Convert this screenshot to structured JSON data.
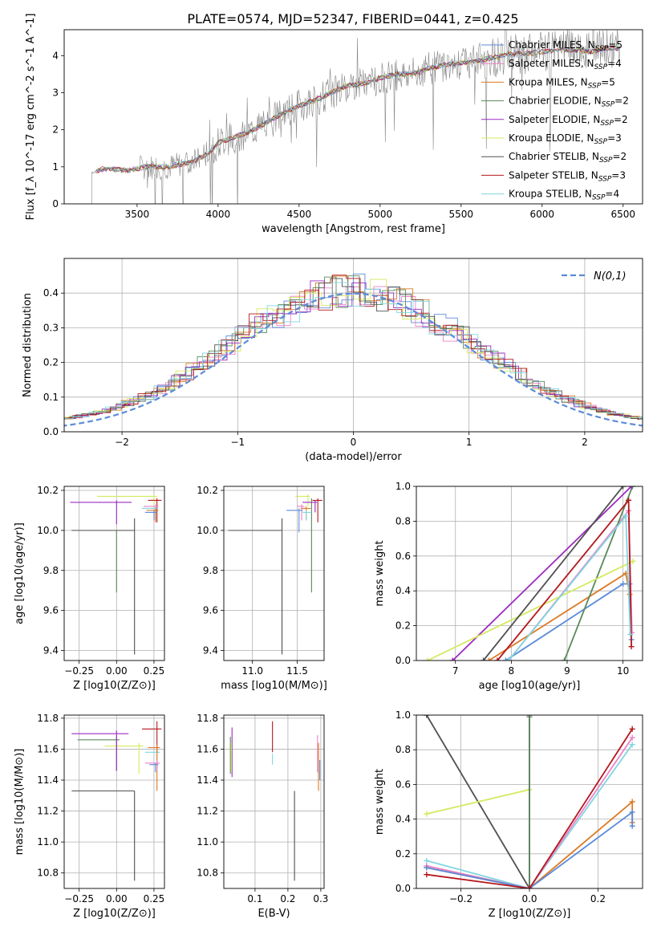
{
  "title": "PLATE=0574, MJD=52347, FIBERID=0441, z=0.425",
  "models": [
    {
      "name": "Chabrier MILES",
      "nssp": "5",
      "color": "#5b8bd9"
    },
    {
      "name": "Salpeter MILES",
      "nssp": "4",
      "color": "#ee82c8"
    },
    {
      "name": "Kroupa MILES",
      "nssp": "5",
      "color": "#dd7a26"
    },
    {
      "name": "Chabrier ELODIE",
      "nssp": "2",
      "color": "#5a8a5a"
    },
    {
      "name": "Salpeter ELODIE",
      "nssp": "2",
      "color": "#9b2bc0"
    },
    {
      "name": "Kroupa ELODIE",
      "nssp": "3",
      "color": "#d4ea5f"
    },
    {
      "name": "Chabrier STELIB",
      "nssp": "2",
      "color": "#505050"
    },
    {
      "name": "Salpeter STELIB",
      "nssp": "3",
      "color": "#b5171c"
    },
    {
      "name": "Kroupa STELIB",
      "nssp": "4",
      "color": "#7fd7e0"
    }
  ],
  "chart_data": [
    {
      "id": "spectrum",
      "type": "line",
      "xlabel": "wavelength [Angstrom, rest frame]",
      "ylabel": "Flux [f_λ 10^-17 erg cm^-2 s^-1 A^-1]",
      "xlim": [
        3050,
        6620
      ],
      "ylim": [
        0,
        4.7
      ],
      "xticks": [
        3500,
        4000,
        4500,
        5000,
        5500,
        6000,
        6500
      ],
      "yticks": [
        0,
        1,
        2,
        3,
        4
      ],
      "data_color": "#888888",
      "continuum": [
        [
          3220,
          0.85
        ],
        [
          3300,
          0.95
        ],
        [
          3450,
          0.9
        ],
        [
          3550,
          1.0
        ],
        [
          3700,
          1.0
        ],
        [
          3850,
          1.15
        ],
        [
          3950,
          1.4
        ],
        [
          4000,
          1.65
        ],
        [
          4100,
          1.8
        ],
        [
          4200,
          1.95
        ],
        [
          4300,
          2.2
        ],
        [
          4400,
          2.45
        ],
        [
          4500,
          2.65
        ],
        [
          4600,
          2.8
        ],
        [
          4700,
          3.0
        ],
        [
          4800,
          3.2
        ],
        [
          4900,
          3.25
        ],
        [
          5000,
          3.4
        ],
        [
          5100,
          3.5
        ],
        [
          5200,
          3.5
        ],
        [
          5300,
          3.65
        ],
        [
          5400,
          3.75
        ],
        [
          5500,
          3.8
        ],
        [
          5600,
          3.85
        ],
        [
          5700,
          3.95
        ],
        [
          5800,
          4.05
        ],
        [
          5900,
          4.05
        ],
        [
          6000,
          4.1
        ],
        [
          6100,
          4.15
        ],
        [
          6200,
          4.15
        ],
        [
          6300,
          4.1
        ],
        [
          6400,
          4.2
        ],
        [
          6480,
          4.2
        ]
      ]
    },
    {
      "id": "residuals",
      "type": "step",
      "xlabel": "(data-model)/error",
      "ylabel": "Normed distribution",
      "xlim": [
        -2.5,
        2.5
      ],
      "ylim": [
        0,
        0.5
      ],
      "xticks": [
        -2,
        -1,
        0,
        1,
        2
      ],
      "yticks": [
        0.0,
        0.1,
        0.2,
        0.3,
        0.4
      ],
      "gaussian_label": "N(0,1)",
      "gaussian_color": "#5b8bd9"
    },
    {
      "id": "age-vs-Z",
      "type": "errorbar",
      "xlabel": "Z [log10(Z/Z⊙)]",
      "ylabel": "age [log10(age/yr)]",
      "xlim": [
        -0.35,
        0.32
      ],
      "ylim": [
        9.35,
        10.22
      ],
      "xticks": [
        -0.25,
        0.0,
        0.25
      ],
      "xticklabels": [
        "−0.25",
        "0.00",
        "0.25"
      ],
      "yticks": [
        9.4,
        9.6,
        9.8,
        10.0,
        10.2
      ],
      "points": [
        {
          "m": 6,
          "x": 0.12,
          "y": 10.0,
          "xl": 0.42,
          "xh": 0,
          "yl": 0.62,
          "yh": 0.06
        },
        {
          "m": 3,
          "x": 0.0,
          "y": 10.0,
          "xl": 0,
          "xh": 0,
          "yl": 0.31,
          "yh": 0
        },
        {
          "m": 5,
          "x": 0.25,
          "y": 10.17,
          "xl": 0.38,
          "xh": 0.02,
          "yl": 0.05,
          "yh": 0.01
        },
        {
          "m": 4,
          "x": 0.0,
          "y": 10.14,
          "xl": 0.31,
          "xh": 0.1,
          "yl": 0.11,
          "yh": 0.01
        },
        {
          "m": 7,
          "x": 0.27,
          "y": 10.15,
          "xl": 0.06,
          "xh": 0.03,
          "yl": 0.11,
          "yh": 0.01
        },
        {
          "m": 1,
          "x": 0.26,
          "y": 10.12,
          "xl": 0.08,
          "xh": 0.02,
          "yl": 0.07,
          "yh": 0.01
        },
        {
          "m": 8,
          "x": 0.26,
          "y": 10.11,
          "xl": 0.09,
          "xh": 0.01,
          "yl": 0.05,
          "yh": 0.01
        },
        {
          "m": 2,
          "x": 0.26,
          "y": 10.1,
          "xl": 0.06,
          "xh": 0.02,
          "yl": 0.06,
          "yh": 0.01
        },
        {
          "m": 0,
          "x": 0.25,
          "y": 10.09,
          "xl": 0.06,
          "xh": 0.02,
          "yl": 0.04,
          "yh": 0.01
        }
      ]
    },
    {
      "id": "age-vs-mass",
      "type": "errorbar",
      "xlabel": "mass [log10(M/M⊙)]",
      "ylabel": "",
      "xlim": [
        10.68,
        11.8
      ],
      "ylim": [
        9.35,
        10.22
      ],
      "xticks": [
        11.0,
        11.5
      ],
      "yticks": [
        9.4,
        9.6,
        9.8,
        10.0,
        10.2
      ],
      "points": [
        {
          "m": 6,
          "x": 11.33,
          "y": 10.0,
          "xl": 0.6,
          "xh": 0,
          "yl": 0.62,
          "yh": 0.06
        },
        {
          "m": 3,
          "x": 11.66,
          "y": 10.14,
          "xl": 0,
          "xh": 0,
          "yl": 0.45,
          "yh": 0.02
        },
        {
          "m": 5,
          "x": 11.62,
          "y": 10.17,
          "xl": 0.14,
          "xh": 0.02,
          "yl": 0.05,
          "yh": 0.01
        },
        {
          "m": 4,
          "x": 11.7,
          "y": 10.14,
          "xl": 0.14,
          "xh": 0.02,
          "yl": 0.05,
          "yh": 0.01
        },
        {
          "m": 7,
          "x": 11.73,
          "y": 10.15,
          "xl": 0.06,
          "xh": 0.05,
          "yl": 0.11,
          "yh": 0.01
        },
        {
          "m": 2,
          "x": 11.6,
          "y": 10.11,
          "xl": 0.06,
          "xh": 0.05,
          "yl": 0.06,
          "yh": 0.01
        },
        {
          "m": 8,
          "x": 11.6,
          "y": 10.09,
          "xl": 0.04,
          "xh": 0.05,
          "yl": 0.04,
          "yh": 0.01
        },
        {
          "m": 1,
          "x": 11.55,
          "y": 10.12,
          "xl": 0.05,
          "xh": 0.03,
          "yl": 0.07,
          "yh": 0.01
        },
        {
          "m": 0,
          "x": 11.52,
          "y": 10.1,
          "xl": 0.14,
          "xh": 0.04,
          "yl": 0.11,
          "yh": 0.01
        }
      ]
    },
    {
      "id": "weight-vs-age",
      "type": "line",
      "xlabel": "age [log10(age/yr)]",
      "ylabel": "mass weight",
      "xlim": [
        6.3,
        10.35
      ],
      "ylim": [
        0.0,
        1.0
      ],
      "xticks": [
        7,
        8,
        9,
        10
      ],
      "yticks": [
        0.0,
        0.2,
        0.4,
        0.6,
        0.8,
        1.0
      ],
      "series": [
        {
          "m": 0,
          "points": [
            [
              7.9,
              0.0
            ],
            [
              10.0,
              0.44
            ],
            [
              10.12,
              0.44
            ],
            [
              10.15,
              0.12
            ]
          ]
        },
        {
          "m": 1,
          "points": [
            [
              7.95,
              0.0
            ],
            [
              10.1,
              0.86
            ],
            [
              10.16,
              0.16
            ]
          ]
        },
        {
          "m": 2,
          "points": [
            [
              7.6,
              0.0
            ],
            [
              10.05,
              0.5
            ],
            [
              10.12,
              0.38
            ]
          ]
        },
        {
          "m": 3,
          "points": [
            [
              8.95,
              0.0
            ],
            [
              10.17,
              1.0
            ]
          ]
        },
        {
          "m": 4,
          "points": [
            [
              6.95,
              0.0
            ],
            [
              10.15,
              1.0
            ]
          ]
        },
        {
          "m": 5,
          "points": [
            [
              6.5,
              0.0
            ],
            [
              10.18,
              0.57
            ]
          ]
        },
        {
          "m": 6,
          "points": [
            [
              7.5,
              0.0
            ],
            [
              10.0,
              1.0
            ]
          ]
        },
        {
          "m": 7,
          "points": [
            [
              7.75,
              0.0
            ],
            [
              10.1,
              0.92
            ],
            [
              10.15,
              0.08
            ]
          ]
        },
        {
          "m": 8,
          "points": [
            [
              7.95,
              0.0
            ],
            [
              10.05,
              0.83
            ],
            [
              10.13,
              0.15
            ]
          ]
        }
      ]
    },
    {
      "id": "mass-vs-Z",
      "type": "errorbar",
      "xlabel": "Z [log10(Z/Z⊙)]",
      "ylabel": "mass [log10(M/M⊙)]",
      "xlim": [
        -0.35,
        0.32
      ],
      "ylim": [
        10.7,
        11.82
      ],
      "xticks": [
        -0.25,
        0.0,
        0.25
      ],
      "xticklabels": [
        "−0.25",
        "0.00",
        "0.25"
      ],
      "yticks": [
        10.8,
        11.0,
        11.2,
        11.4,
        11.6,
        11.8
      ],
      "points": [
        {
          "m": 6,
          "x": 0.12,
          "y": 11.33,
          "xl": 0.42,
          "xh": 0,
          "yl": 0.58,
          "yh": 0
        },
        {
          "m": 3,
          "x": 0.0,
          "y": 11.66,
          "xl": 0.26,
          "xh": 0.02,
          "yl": 0.2,
          "yh": 0.02
        },
        {
          "m": 5,
          "x": 0.15,
          "y": 11.62,
          "xl": 0.23,
          "xh": 0.03,
          "yl": 0.18,
          "yh": 0.02
        },
        {
          "m": 4,
          "x": 0.0,
          "y": 11.7,
          "xl": 0.3,
          "xh": 0.08,
          "yl": 0.24,
          "yh": 0.02
        },
        {
          "m": 7,
          "x": 0.27,
          "y": 11.73,
          "xl": 0.1,
          "xh": 0.03,
          "yl": 0.15,
          "yh": 0.05
        },
        {
          "m": 8,
          "x": 0.27,
          "y": 11.58,
          "xl": 0.08,
          "xh": 0.02,
          "yl": 0.08,
          "yh": 0.02
        },
        {
          "m": 2,
          "x": 0.27,
          "y": 11.61,
          "xl": 0.06,
          "xh": 0.02,
          "yl": 0.28,
          "yh": 0.02
        },
        {
          "m": 1,
          "x": 0.27,
          "y": 11.51,
          "xl": 0.08,
          "xh": 0.02,
          "yl": 0.05,
          "yh": 0.02
        },
        {
          "m": 0,
          "x": 0.26,
          "y": 11.5,
          "xl": 0.04,
          "xh": 0.02,
          "yl": 0.05,
          "yh": 0.01
        }
      ]
    },
    {
      "id": "mass-vs-ebv",
      "type": "errorbar",
      "xlabel": "E(B-V)",
      "ylabel": "",
      "xlim": [
        0.005,
        0.31
      ],
      "ylim": [
        10.7,
        11.82
      ],
      "xticks": [
        0.1,
        0.2,
        0.3
      ],
      "yticks": [
        10.8,
        11.0,
        11.2,
        11.4,
        11.6,
        11.8
      ],
      "points": [
        {
          "m": 6,
          "x": 0.22,
          "y": 11.33,
          "xl": 0,
          "xh": 0,
          "yl": 0.58,
          "yh": 0
        },
        {
          "m": 7,
          "x": 0.153,
          "y": 11.58,
          "xl": 0,
          "xh": 0,
          "yl": 0.0,
          "yh": 0.2
        },
        {
          "m": 8,
          "x": 0.153,
          "y": 11.52,
          "xl": 0,
          "xh": 0,
          "yl": 0.02,
          "yh": 0.05
        },
        {
          "m": 4,
          "x": 0.03,
          "y": 11.7,
          "xl": 0,
          "xh": 0,
          "yl": 0.28,
          "yh": 0.04
        },
        {
          "m": 3,
          "x": 0.025,
          "y": 11.66,
          "xl": 0,
          "xh": 0,
          "yl": 0.22,
          "yh": 0.02
        },
        {
          "m": 5,
          "x": 0.028,
          "y": 11.62,
          "xl": 0,
          "xh": 0,
          "yl": 0.16,
          "yh": 0.02
        },
        {
          "m": 2,
          "x": 0.293,
          "y": 11.61,
          "xl": 0,
          "xh": 0,
          "yl": 0.28,
          "yh": 0.03
        },
        {
          "m": 1,
          "x": 0.29,
          "y": 11.55,
          "xl": 0,
          "xh": 0,
          "yl": 0.1,
          "yh": 0.14
        },
        {
          "m": 0,
          "x": 0.297,
          "y": 11.5,
          "xl": 0,
          "xh": 0,
          "yl": 0.1,
          "yh": 0.03
        }
      ]
    },
    {
      "id": "weight-vs-Z",
      "type": "line",
      "xlabel": "Z [log10(Z/Z⊙)]",
      "ylabel": "mass weight",
      "xlim": [
        -0.33,
        0.33
      ],
      "ylim": [
        0.0,
        1.0
      ],
      "xticks": [
        -0.2,
        0.0,
        0.2
      ],
      "xticklabels": [
        "−0.2",
        "0.0",
        "0.2"
      ],
      "yticks": [
        0.0,
        0.2,
        0.4,
        0.6,
        0.8,
        1.0
      ],
      "series": [
        {
          "m": 6,
          "points": [
            [
              -0.3,
              1.0
            ],
            [
              0.0,
              0.0
            ]
          ]
        },
        {
          "m": 5,
          "points": [
            [
              -0.3,
              0.43
            ],
            [
              0.0,
              0.57
            ],
            [
              0.0,
              0.0
            ]
          ]
        },
        {
          "m": 4,
          "points": [
            [
              0.0,
              0.0
            ],
            [
              0.0,
              1.0
            ]
          ]
        },
        {
          "m": 3,
          "points": [
            [
              0.0,
              0.0
            ],
            [
              0.0,
              0.99
            ]
          ]
        },
        {
          "m": 8,
          "points": [
            [
              -0.3,
              0.16
            ],
            [
              0.0,
              0.0
            ],
            [
              0.3,
              0.83
            ]
          ]
        },
        {
          "m": 1,
          "points": [
            [
              -0.3,
              0.13
            ],
            [
              0.0,
              0.0
            ],
            [
              0.3,
              0.87
            ]
          ]
        },
        {
          "m": 2,
          "points": [
            [
              -0.3,
              0.12
            ],
            [
              0.0,
              0.0
            ],
            [
              0.3,
              0.5
            ],
            [
              0.3,
              0.38
            ]
          ]
        },
        {
          "m": 0,
          "points": [
            [
              -0.3,
              0.12
            ],
            [
              0.0,
              0.0
            ],
            [
              0.3,
              0.44
            ],
            [
              0.3,
              0.36
            ]
          ]
        },
        {
          "m": 7,
          "points": [
            [
              -0.3,
              0.08
            ],
            [
              0.0,
              0.0
            ],
            [
              0.3,
              0.92
            ]
          ]
        }
      ]
    }
  ]
}
